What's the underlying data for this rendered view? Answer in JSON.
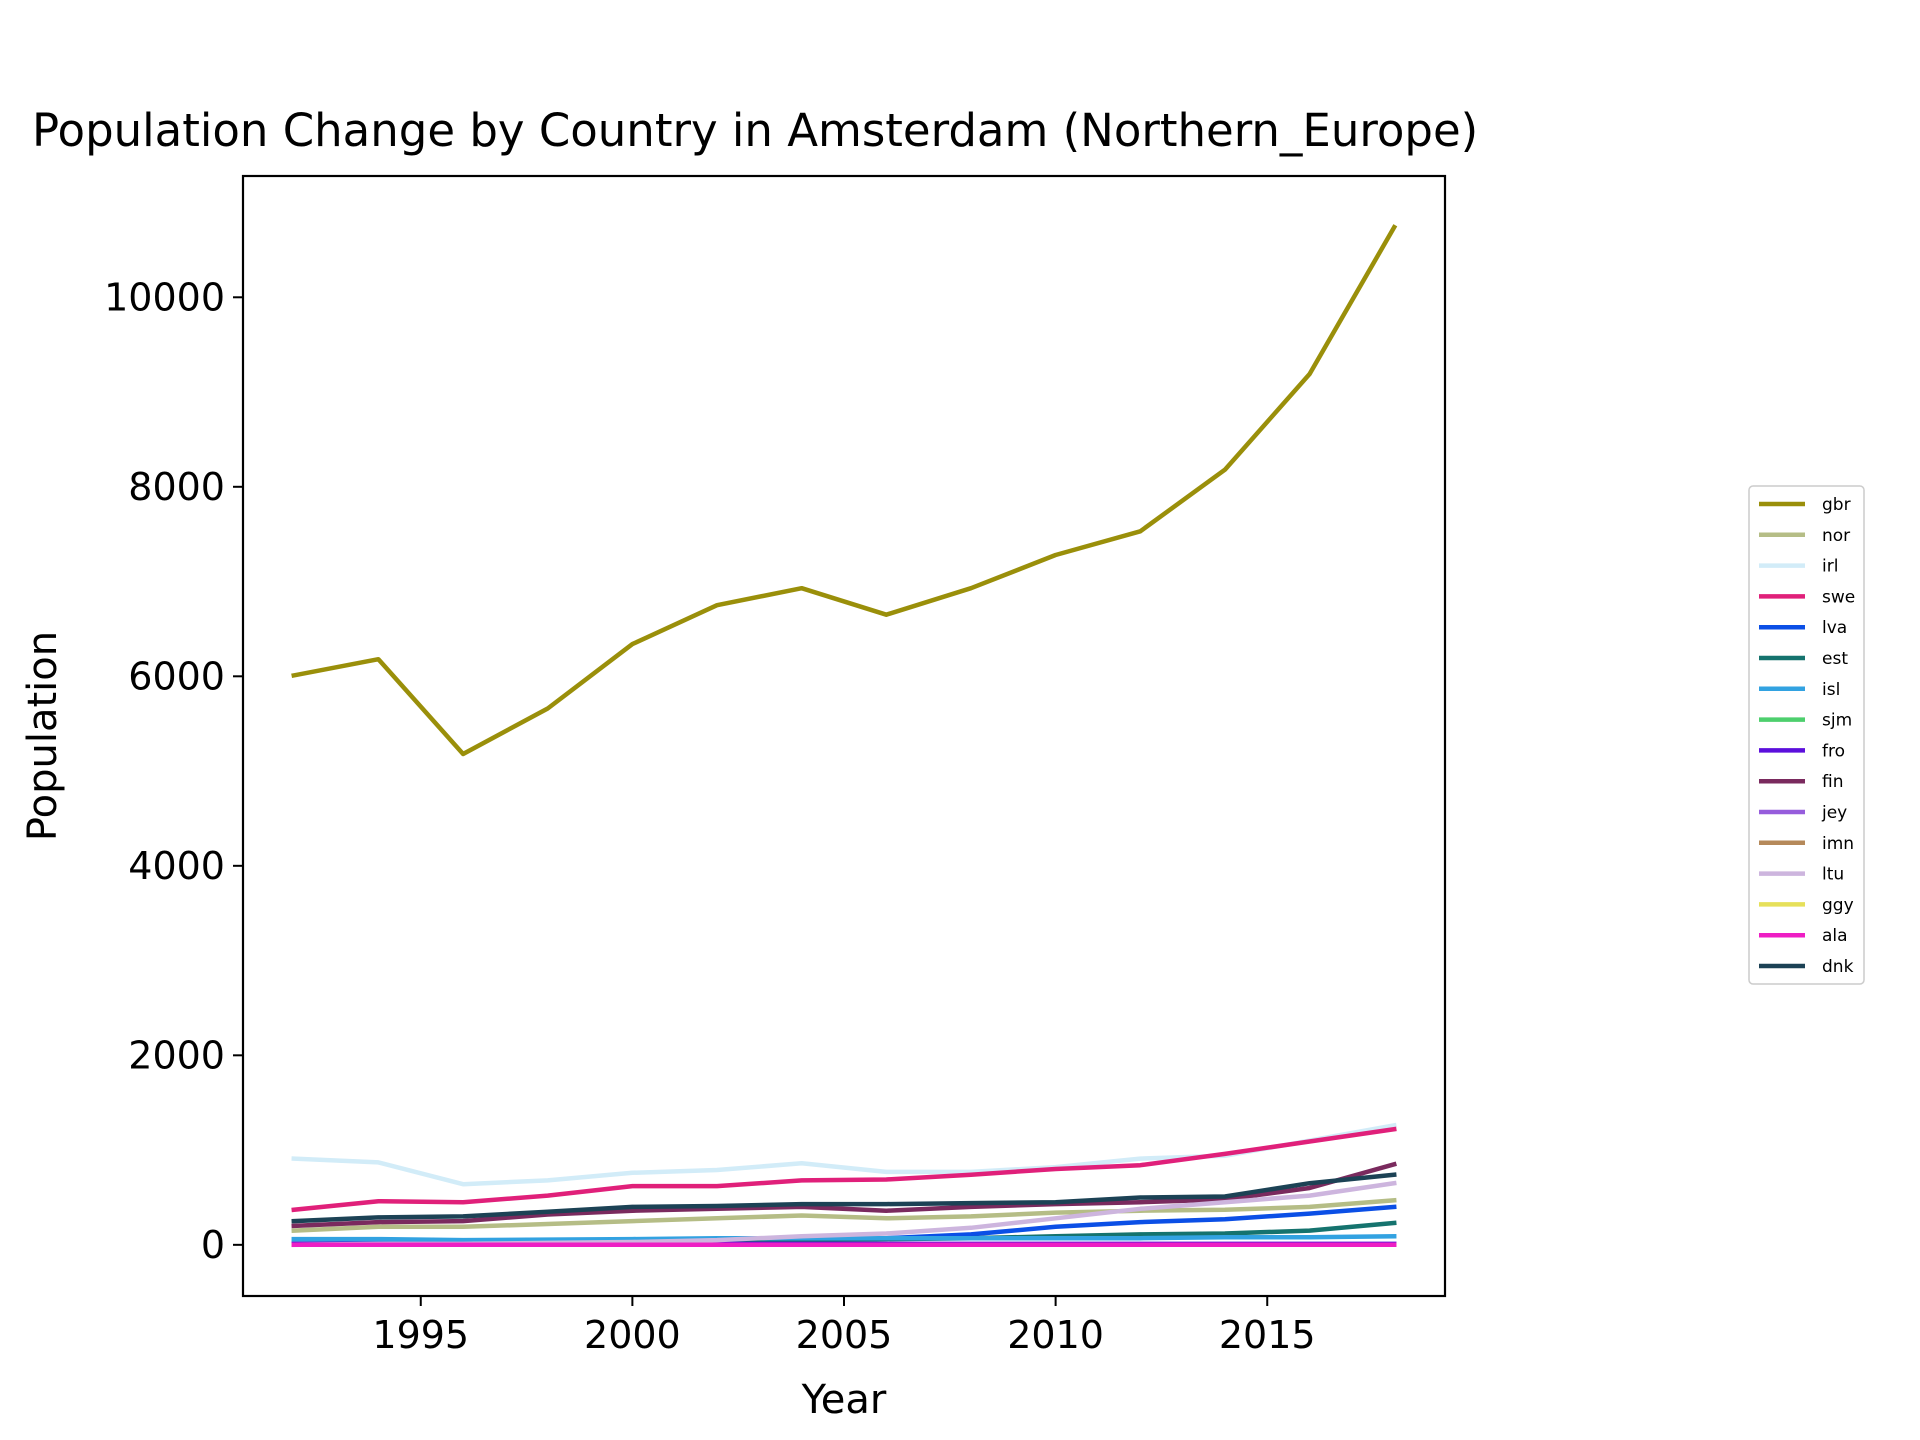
{
  "chart_data": {
    "type": "line",
    "title": "Population Change by Country in Amsterdam (Northern_Europe)",
    "xlabel": "Year",
    "ylabel": "Population",
    "xlim": [
      1990.8,
      2019.2
    ],
    "ylim": [
      -540,
      11280
    ],
    "xticks": [
      1995,
      2000,
      2005,
      2010,
      2015
    ],
    "yticks": [
      0,
      2000,
      4000,
      6000,
      8000,
      10000
    ],
    "grid": false,
    "legend_position": "right",
    "x": [
      1992,
      1994,
      1996,
      1998,
      2000,
      2002,
      2004,
      2006,
      2008,
      2010,
      2012,
      2014,
      2016,
      2018
    ],
    "series": [
      {
        "name": "gbr",
        "color": "#9a8f0a",
        "values": [
          6010,
          6180,
          5180,
          5660,
          6340,
          6750,
          6930,
          6650,
          6930,
          7280,
          7530,
          8180,
          9190,
          10740
        ]
      },
      {
        "name": "nor",
        "color": "#b5bd86",
        "values": [
          150,
          190,
          190,
          220,
          250,
          280,
          310,
          280,
          300,
          340,
          360,
          370,
          400,
          470
        ]
      },
      {
        "name": "irl",
        "color": "#d2ecf8",
        "values": [
          910,
          870,
          640,
          680,
          760,
          790,
          860,
          770,
          770,
          820,
          910,
          940,
          1100,
          1260
        ]
      },
      {
        "name": "swe",
        "color": "#e0207a",
        "values": [
          370,
          460,
          450,
          520,
          620,
          620,
          680,
          690,
          740,
          800,
          840,
          960,
          1090,
          1220
        ]
      },
      {
        "name": "lva",
        "color": "#0b4fe6",
        "values": [
          10,
          20,
          20,
          30,
          40,
          50,
          60,
          70,
          110,
          190,
          240,
          270,
          330,
          400
        ]
      },
      {
        "name": "est",
        "color": "#15736e",
        "values": [
          10,
          10,
          10,
          20,
          30,
          40,
          50,
          60,
          70,
          90,
          110,
          120,
          150,
          230
        ]
      },
      {
        "name": "isl",
        "color": "#32a2e1",
        "values": [
          60,
          60,
          50,
          55,
          60,
          70,
          70,
          70,
          70,
          70,
          70,
          80,
          80,
          90
        ]
      },
      {
        "name": "sjm",
        "color": "#4dcf6d",
        "values": [
          0,
          0,
          0,
          0,
          0,
          0,
          0,
          0,
          0,
          0,
          0,
          0,
          0,
          0
        ]
      },
      {
        "name": "fro",
        "color": "#5b0fdc",
        "values": [
          10,
          10,
          10,
          10,
          10,
          10,
          10,
          10,
          10,
          10,
          10,
          10,
          10,
          10
        ]
      },
      {
        "name": "fin",
        "color": "#7a2a5e",
        "values": [
          200,
          240,
          250,
          320,
          360,
          380,
          400,
          360,
          400,
          430,
          450,
          480,
          600,
          850
        ]
      },
      {
        "name": "jey",
        "color": "#965ddc",
        "values": [
          0,
          0,
          0,
          0,
          0,
          0,
          0,
          0,
          0,
          0,
          0,
          0,
          0,
          0
        ]
      },
      {
        "name": "imn",
        "color": "#b5895a",
        "values": [
          0,
          0,
          0,
          0,
          0,
          0,
          0,
          0,
          0,
          0,
          0,
          0,
          0,
          0
        ]
      },
      {
        "name": "ltu",
        "color": "#cdb5de",
        "values": [
          0,
          10,
          10,
          20,
          30,
          50,
          90,
          120,
          180,
          280,
          380,
          450,
          520,
          650
        ]
      },
      {
        "name": "ggy",
        "color": "#e6e05a",
        "values": [
          0,
          0,
          0,
          0,
          0,
          0,
          0,
          0,
          0,
          0,
          0,
          0,
          0,
          0
        ]
      },
      {
        "name": "ala",
        "color": "#ee1ec4",
        "values": [
          0,
          0,
          0,
          0,
          0,
          0,
          0,
          0,
          0,
          0,
          0,
          0,
          0,
          0
        ]
      },
      {
        "name": "dnk",
        "color": "#1c4255",
        "values": [
          250,
          290,
          300,
          350,
          400,
          410,
          430,
          430,
          440,
          450,
          500,
          510,
          650,
          740
        ]
      }
    ]
  }
}
